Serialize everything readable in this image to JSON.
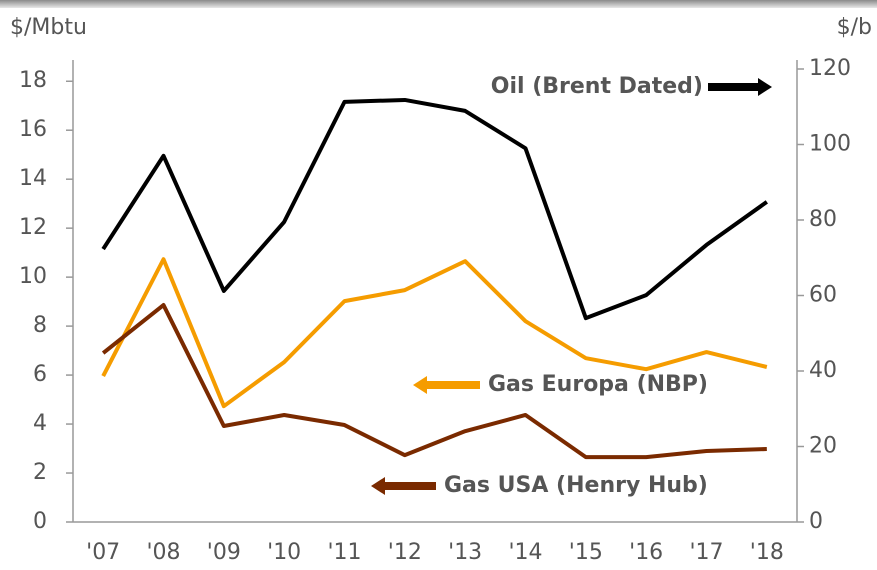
{
  "chart_data": {
    "type": "line",
    "y_label": "$/Mbtu",
    "y2_label": "$/b",
    "categories": [
      "'07",
      "'08",
      "'09",
      "'10",
      "'11",
      "'12",
      "'13",
      "'14",
      "'15",
      "'16",
      "'17",
      "'18"
    ],
    "series": [
      {
        "name": "Oil (Brent Dated)",
        "color": "#000000",
        "axis": "y2",
        "values": [
          72.3,
          97,
          61.2,
          79.5,
          111.3,
          111.8,
          108.9,
          99,
          54,
          60.1,
          73.4,
          84.8
        ]
      },
      {
        "name": "Gas Europa (NBP)",
        "color": "#f59c00",
        "values": [
          5.96,
          10.73,
          4.73,
          6.53,
          9.02,
          9.47,
          10.65,
          8.2,
          6.69,
          6.24,
          6.94,
          6.33
        ]
      },
      {
        "name": "Gas USA (Henry Hub)",
        "color": "#7a2a00",
        "values": [
          6.9,
          8.86,
          3.92,
          4.37,
          3.96,
          2.73,
          3.71,
          4.37,
          2.65,
          2.65,
          2.9,
          2.98
        ]
      }
    ],
    "ylim": [
      0,
      18.5
    ],
    "yticks": [
      0,
      2,
      4,
      6,
      8,
      10,
      12,
      14,
      16,
      18
    ],
    "y2lim": [
      0,
      120
    ],
    "y2ticks": [
      0,
      20,
      40,
      60,
      80,
      100,
      120
    ]
  }
}
